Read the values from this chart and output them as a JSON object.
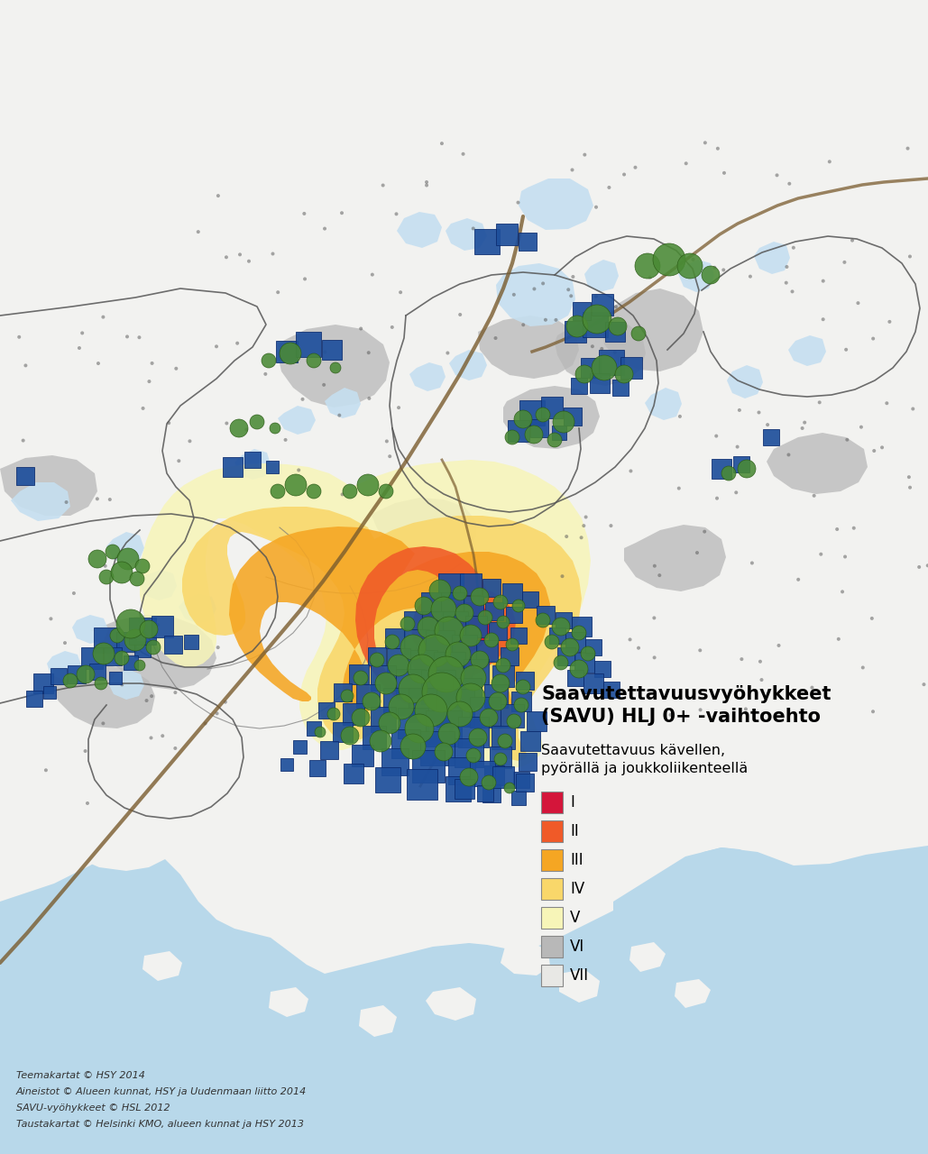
{
  "title_line1": "Saavutettavuusvyöhykkeet",
  "title_line2": "(SAVU) HLJ 0+ -vaihtoehto",
  "legend_subtitle_line1": "Saavutettavuus kävellen,",
  "legend_subtitle_line2": "pyörällä ja joukkoliikenteellä",
  "legend_items": [
    {
      "label": "I",
      "color": "#d4153a"
    },
    {
      "label": "II",
      "color": "#f05a28"
    },
    {
      "label": "III",
      "color": "#f5a623"
    },
    {
      "label": "IV",
      "color": "#f9d76a"
    },
    {
      "label": "V",
      "color": "#f7f5b8"
    },
    {
      "label": "VI",
      "color": "#b8b8b8"
    },
    {
      "label": "VII",
      "color": "#e8e8e5"
    }
  ],
  "footer_lines": [
    "Teemakartat © HSY 2014",
    "Aineistot © Alueen kunnat, HSY ja Uudenmaan liitto 2014",
    "SAVU-vyöhykkeet © HSL 2012",
    "Taustakartat © Helsinki KMO, alueen kunnat ja HSY 2013"
  ],
  "bg_color": "#b8d8ea",
  "land_color": "#f2f2f0",
  "water_color": "#b8d8ea",
  "lake_color": "#c5dff0",
  "border_color": "#555555",
  "road_color": "#7a5c2e",
  "blue_sq_color": "#1e4f9c",
  "blue_sq_edge": "#0a2a6e",
  "green_circle_color": "#4a8a35",
  "green_circle_edge": "#2a5a15",
  "dot_color": "#555555"
}
